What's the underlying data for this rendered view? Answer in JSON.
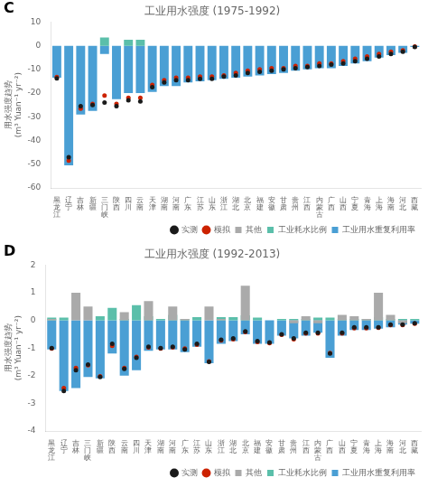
{
  "chart_data": [
    {
      "type": "bar",
      "title": "工业用水强度 (1975-1992)",
      "annotations": [
        "C"
      ],
      "ylabel": "用水强度趋势\n(m³ Yuan⁻¹ yr⁻²)",
      "categories": [
        "黑龙江",
        "辽宁",
        "吉林",
        "新疆",
        "三门峡",
        "陕西",
        "四川",
        "云南",
        "天津",
        "湖南",
        "河南",
        "广东",
        "江苏",
        "山东",
        "浙江",
        "湖北",
        "北京",
        "福建",
        "安徽",
        "甘肃",
        "贵州",
        "江西",
        "内蒙古",
        "广西",
        "山西",
        "宁夏",
        "青海",
        "上海",
        "海南",
        "河北",
        "西藏"
      ],
      "series": [
        {
          "name": "工业用水重复利用率",
          "color": "#4a9fd4",
          "values": [
            -13.5,
            -50.5,
            -29.0,
            -27.5,
            -3.5,
            -22.5,
            -20.0,
            -20.0,
            -19.5,
            -17.0,
            -17.0,
            -15.5,
            -15.0,
            -14.5,
            -14.0,
            -13.5,
            -13.0,
            -12.5,
            -12.0,
            -11.5,
            -10.5,
            -10.0,
            -9.5,
            -9.5,
            -8.5,
            -7.5,
            -6.5,
            -5.0,
            -4.0,
            -3.0,
            -0.5
          ]
        },
        {
          "name": "工业耗水比例",
          "color": "#5bbfaa",
          "values": [
            0,
            0,
            0,
            0,
            3.5,
            0,
            2.5,
            2.5,
            0,
            0,
            0,
            0,
            0,
            0,
            0,
            0,
            0,
            0,
            0,
            0,
            0,
            0,
            0,
            0,
            0,
            0,
            0,
            0,
            0,
            0,
            0
          ]
        },
        {
          "name": "其他",
          "color": "#aaaaaa",
          "values": [
            0,
            0,
            0,
            0,
            0,
            0,
            0,
            0,
            0,
            0,
            0,
            0,
            0,
            0,
            0,
            0,
            0,
            0,
            0,
            0,
            0,
            0,
            0,
            0,
            0,
            0,
            0,
            0,
            0,
            0,
            0
          ]
        },
        {
          "name": "实测",
          "type": "scatter",
          "marker": "circle",
          "color": "#1a1a1a",
          "values": [
            -13.8,
            -47.0,
            -25.5,
            -25.0,
            -24.0,
            -25.5,
            -23.0,
            -23.5,
            -17.5,
            -15.5,
            -14.5,
            -14.5,
            -14.0,
            -14.0,
            -13.0,
            -12.5,
            -11.5,
            -11.0,
            -10.5,
            -10.0,
            -9.5,
            -9.0,
            -8.5,
            -8.0,
            -7.5,
            -6.5,
            -5.5,
            -4.5,
            -3.5,
            -2.5,
            -0.5
          ]
        },
        {
          "name": "模拟",
          "type": "scatter",
          "marker": "circle",
          "color": "#cc2200",
          "values": [
            -13.2,
            -48.5,
            -26.5,
            -24.5,
            -21.0,
            -24.5,
            -22.0,
            -22.0,
            -16.5,
            -14.5,
            -13.5,
            -13.5,
            -13.0,
            -13.0,
            -12.5,
            -11.5,
            -10.5,
            -10.0,
            -9.5,
            -9.5,
            -8.5,
            -8.5,
            -7.5,
            -7.5,
            -6.5,
            -5.5,
            -4.5,
            -3.5,
            -2.5,
            -2.0,
            -0.3
          ]
        }
      ],
      "ylim": [
        -60,
        10
      ],
      "yticks": [
        -60,
        -50,
        -40,
        -30,
        -20,
        -10,
        0,
        10
      ],
      "grid": false,
      "legend": "lower right"
    },
    {
      "type": "bar",
      "title": "工业用水强度 (1992-2013)",
      "annotations": [
        "D"
      ],
      "ylabel": "用水强度趋势\n(m³ Yuan⁻¹ yr⁻²)",
      "categories": [
        "黑龙江",
        "辽宁",
        "吉林",
        "三门峡",
        "新疆",
        "陕西",
        "云南",
        "四川",
        "天津",
        "湖南",
        "河南",
        "广东",
        "江苏",
        "山东",
        "浙江",
        "湖北",
        "北京",
        "福建",
        "安徽",
        "甘肃",
        "贵州",
        "江西",
        "内蒙古",
        "广西",
        "山西",
        "宁夏",
        "青海",
        "上海",
        "海南",
        "河北",
        "西藏"
      ],
      "series": [
        {
          "name": "工业用水重复利用率",
          "color": "#4a9fd4",
          "values": [
            -1.05,
            -2.55,
            -2.45,
            -2.05,
            -2.1,
            -1.2,
            -2.0,
            -1.8,
            -1.1,
            -1.05,
            -1.05,
            -1.15,
            -0.95,
            -1.55,
            -0.85,
            -0.75,
            -0.5,
            -0.85,
            -0.85,
            -0.55,
            -0.65,
            -0.55,
            -0.45,
            -1.35,
            -0.55,
            -0.35,
            -0.35,
            -0.3,
            -0.25,
            -0.15,
            -0.12
          ]
        },
        {
          "name": "工业耗水比例",
          "color": "#5bbfaa",
          "values": [
            0.1,
            0.1,
            0.0,
            0.0,
            0.15,
            0.45,
            0.05,
            0.55,
            0.15,
            0.05,
            0.2,
            0.05,
            0.12,
            0.0,
            0.12,
            0.12,
            0.18,
            0.1,
            0.0,
            0.05,
            0.05,
            0.05,
            0.1,
            0.1,
            0.05,
            0.05,
            0.05,
            0.12,
            0.05,
            0.05,
            0.05
          ]
        },
        {
          "name": "其他",
          "color": "#aaaaaa",
          "values": [
            0.05,
            0.0,
            1.0,
            0.5,
            0.0,
            0.0,
            0.3,
            0.0,
            0.7,
            0.0,
            0.5,
            0.05,
            0.0,
            0.5,
            0.05,
            0.0,
            1.25,
            0.0,
            0.0,
            0.0,
            -0.1,
            0.15,
            -0.1,
            0.0,
            0.2,
            0.15,
            0.05,
            1.0,
            0.2,
            -0.1,
            0.0
          ]
        },
        {
          "name": "实测",
          "type": "scatter",
          "marker": "circle",
          "color": "#1a1a1a",
          "values": [
            -1.0,
            -2.55,
            -1.8,
            -1.6,
            -2.05,
            -0.85,
            -1.75,
            -1.35,
            -0.95,
            -1.0,
            -0.95,
            -1.05,
            -0.85,
            -1.5,
            -0.7,
            -0.65,
            -0.4,
            -0.75,
            -0.8,
            -0.5,
            -0.65,
            -0.45,
            -0.45,
            -1.2,
            -0.45,
            -0.25,
            -0.25,
            -0.25,
            -0.15,
            -0.15,
            -0.1
          ]
        },
        {
          "name": "模拟",
          "type": "scatter",
          "marker": "circle",
          "color": "#cc2200",
          "values": [
            -1.02,
            -2.45,
            -1.72,
            -1.62,
            -2.02,
            -0.92,
            -1.72,
            -1.32,
            -0.98,
            -1.02,
            -0.98,
            -1.02,
            -0.88,
            -1.48,
            -0.72,
            -0.68,
            -0.42,
            -0.78,
            -0.82,
            -0.52,
            -0.68,
            -0.47,
            -0.47,
            -1.18,
            -0.47,
            -0.28,
            -0.28,
            -0.27,
            -0.17,
            -0.17,
            -0.12
          ]
        }
      ],
      "ylim": [
        -4,
        2
      ],
      "yticks": [
        -4,
        -3,
        -2,
        -1,
        0,
        1,
        2
      ],
      "grid": false,
      "legend": "lower right"
    }
  ]
}
